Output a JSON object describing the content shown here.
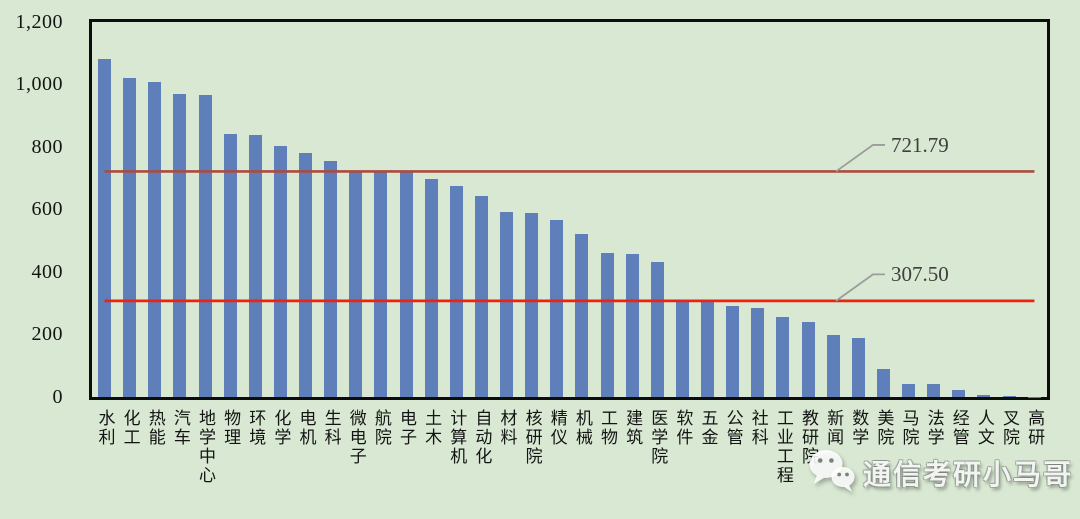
{
  "chart_data": {
    "type": "bar",
    "title": "",
    "xlabel": "",
    "ylabel": "",
    "categories": [
      "水利",
      "化工",
      "热能",
      "汽车",
      "地学中心",
      "物理",
      "环境",
      "化学",
      "电机",
      "生科",
      "微电子",
      "航院",
      "电子",
      "土木",
      "计算机",
      "自动化",
      "材料",
      "核研院",
      "精仪",
      "机械",
      "工物",
      "建筑",
      "医学院",
      "软件",
      "五金",
      "公管",
      "社科",
      "工业工程",
      "教研院",
      "新闻",
      "数学",
      "美院",
      "马院",
      "法学",
      "经管",
      "人文",
      "叉院",
      "高研"
    ],
    "values": [
      1082,
      1022,
      1007,
      969,
      967,
      841,
      839,
      803,
      782,
      754,
      722,
      720,
      719,
      697,
      675,
      644,
      593,
      588,
      565,
      523,
      462,
      458,
      431,
      308,
      306,
      291,
      285,
      256,
      241,
      198,
      190,
      89,
      42,
      41,
      24,
      8,
      2,
      1
    ],
    "ylim": [
      0,
      1200
    ],
    "yticks": [
      {
        "value": 0,
        "label": "0"
      },
      {
        "value": 200,
        "label": "200"
      },
      {
        "value": 400,
        "label": "400"
      },
      {
        "value": 600,
        "label": "600"
      },
      {
        "value": 800,
        "label": "800"
      },
      {
        "value": 1000,
        "label": "1,000"
      },
      {
        "value": 1200,
        "label": "1,200"
      }
    ],
    "reference_lines": [
      {
        "value": 721.79,
        "label": "721.79",
        "color": "#ad4a40",
        "width": 2.6
      },
      {
        "value": 307.5,
        "label": "307.50",
        "color": "#ec2213",
        "width": 2.8
      }
    ],
    "bar_color": "#5f7fba",
    "background_color": "#d8e8d2",
    "grid": false,
    "legend": "none"
  },
  "watermark": {
    "icon": "wechat-icon",
    "text": "通信考研小马哥"
  },
  "colors": {
    "background": "#d8e8d2",
    "plot_border": "#0d0d0d",
    "axis_text": "#141414",
    "annotation_text": "#3f3f3f",
    "leader_line": "#9c9c9c"
  }
}
